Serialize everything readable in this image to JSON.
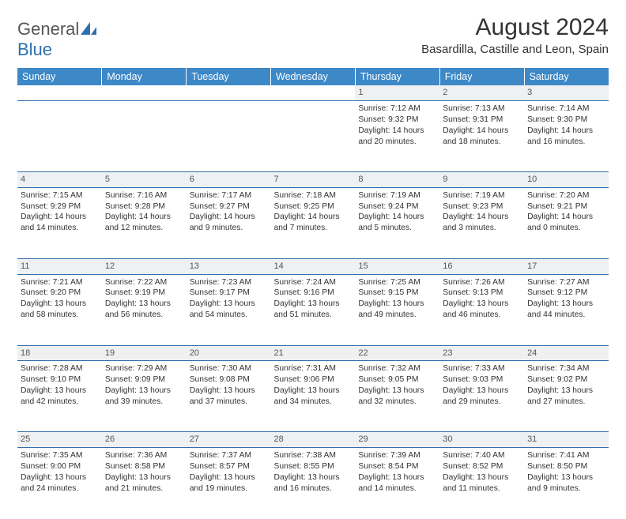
{
  "logo": {
    "line1": "General",
    "line2": "Blue"
  },
  "title": "August 2024",
  "location": "Basardilla, Castille and Leon, Spain",
  "colors": {
    "header_bg": "#3d88c7",
    "header_text": "#ffffff",
    "daynum_bg": "#eef0f2",
    "border": "#2f6fb0",
    "logo_blue": "#2f6fb0",
    "text": "#333333"
  },
  "day_headers": [
    "Sunday",
    "Monday",
    "Tuesday",
    "Wednesday",
    "Thursday",
    "Friday",
    "Saturday"
  ],
  "weeks": [
    {
      "nums": [
        "",
        "",
        "",
        "",
        "1",
        "2",
        "3"
      ],
      "cells": [
        null,
        null,
        null,
        null,
        {
          "sunrise": "7:12 AM",
          "sunset": "9:32 PM",
          "daylight": "14 hours and 20 minutes."
        },
        {
          "sunrise": "7:13 AM",
          "sunset": "9:31 PM",
          "daylight": "14 hours and 18 minutes."
        },
        {
          "sunrise": "7:14 AM",
          "sunset": "9:30 PM",
          "daylight": "14 hours and 16 minutes."
        }
      ]
    },
    {
      "nums": [
        "4",
        "5",
        "6",
        "7",
        "8",
        "9",
        "10"
      ],
      "cells": [
        {
          "sunrise": "7:15 AM",
          "sunset": "9:29 PM",
          "daylight": "14 hours and 14 minutes."
        },
        {
          "sunrise": "7:16 AM",
          "sunset": "9:28 PM",
          "daylight": "14 hours and 12 minutes."
        },
        {
          "sunrise": "7:17 AM",
          "sunset": "9:27 PM",
          "daylight": "14 hours and 9 minutes."
        },
        {
          "sunrise": "7:18 AM",
          "sunset": "9:25 PM",
          "daylight": "14 hours and 7 minutes."
        },
        {
          "sunrise": "7:19 AM",
          "sunset": "9:24 PM",
          "daylight": "14 hours and 5 minutes."
        },
        {
          "sunrise": "7:19 AM",
          "sunset": "9:23 PM",
          "daylight": "14 hours and 3 minutes."
        },
        {
          "sunrise": "7:20 AM",
          "sunset": "9:21 PM",
          "daylight": "14 hours and 0 minutes."
        }
      ]
    },
    {
      "nums": [
        "11",
        "12",
        "13",
        "14",
        "15",
        "16",
        "17"
      ],
      "cells": [
        {
          "sunrise": "7:21 AM",
          "sunset": "9:20 PM",
          "daylight": "13 hours and 58 minutes."
        },
        {
          "sunrise": "7:22 AM",
          "sunset": "9:19 PM",
          "daylight": "13 hours and 56 minutes."
        },
        {
          "sunrise": "7:23 AM",
          "sunset": "9:17 PM",
          "daylight": "13 hours and 54 minutes."
        },
        {
          "sunrise": "7:24 AM",
          "sunset": "9:16 PM",
          "daylight": "13 hours and 51 minutes."
        },
        {
          "sunrise": "7:25 AM",
          "sunset": "9:15 PM",
          "daylight": "13 hours and 49 minutes."
        },
        {
          "sunrise": "7:26 AM",
          "sunset": "9:13 PM",
          "daylight": "13 hours and 46 minutes."
        },
        {
          "sunrise": "7:27 AM",
          "sunset": "9:12 PM",
          "daylight": "13 hours and 44 minutes."
        }
      ]
    },
    {
      "nums": [
        "18",
        "19",
        "20",
        "21",
        "22",
        "23",
        "24"
      ],
      "cells": [
        {
          "sunrise": "7:28 AM",
          "sunset": "9:10 PM",
          "daylight": "13 hours and 42 minutes."
        },
        {
          "sunrise": "7:29 AM",
          "sunset": "9:09 PM",
          "daylight": "13 hours and 39 minutes."
        },
        {
          "sunrise": "7:30 AM",
          "sunset": "9:08 PM",
          "daylight": "13 hours and 37 minutes."
        },
        {
          "sunrise": "7:31 AM",
          "sunset": "9:06 PM",
          "daylight": "13 hours and 34 minutes."
        },
        {
          "sunrise": "7:32 AM",
          "sunset": "9:05 PM",
          "daylight": "13 hours and 32 minutes."
        },
        {
          "sunrise": "7:33 AM",
          "sunset": "9:03 PM",
          "daylight": "13 hours and 29 minutes."
        },
        {
          "sunrise": "7:34 AM",
          "sunset": "9:02 PM",
          "daylight": "13 hours and 27 minutes."
        }
      ]
    },
    {
      "nums": [
        "25",
        "26",
        "27",
        "28",
        "29",
        "30",
        "31"
      ],
      "cells": [
        {
          "sunrise": "7:35 AM",
          "sunset": "9:00 PM",
          "daylight": "13 hours and 24 minutes."
        },
        {
          "sunrise": "7:36 AM",
          "sunset": "8:58 PM",
          "daylight": "13 hours and 21 minutes."
        },
        {
          "sunrise": "7:37 AM",
          "sunset": "8:57 PM",
          "daylight": "13 hours and 19 minutes."
        },
        {
          "sunrise": "7:38 AM",
          "sunset": "8:55 PM",
          "daylight": "13 hours and 16 minutes."
        },
        {
          "sunrise": "7:39 AM",
          "sunset": "8:54 PM",
          "daylight": "13 hours and 14 minutes."
        },
        {
          "sunrise": "7:40 AM",
          "sunset": "8:52 PM",
          "daylight": "13 hours and 11 minutes."
        },
        {
          "sunrise": "7:41 AM",
          "sunset": "8:50 PM",
          "daylight": "13 hours and 9 minutes."
        }
      ]
    }
  ],
  "labels": {
    "sunrise": "Sunrise: ",
    "sunset": "Sunset: ",
    "daylight": "Daylight: "
  }
}
